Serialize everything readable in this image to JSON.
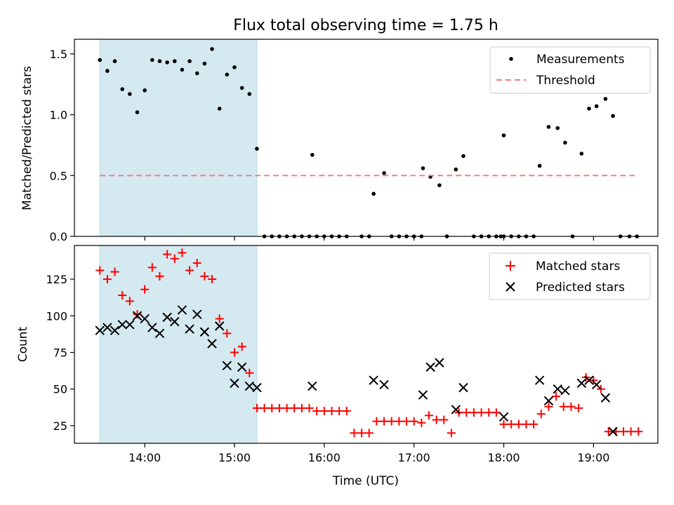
{
  "chart_data": [
    {
      "type": "scatter",
      "title": "Flux total observing time = 1.75 h",
      "xlabel": "",
      "ylabel": "Matched/Predicted stars",
      "xlim": [
        "13:13",
        "19:43"
      ],
      "ylim": [
        0,
        1.62
      ],
      "x_ticks": [
        "14:00",
        "15:00",
        "16:00",
        "17:00",
        "18:00",
        "19:00"
      ],
      "y_ticks": [
        0.0,
        0.5,
        1.0,
        1.5
      ],
      "y_tick_labels": [
        "0.0",
        "0.5",
        "1.0",
        "1.5"
      ],
      "shaded_interval": [
        "13:30",
        "15:15"
      ],
      "legend_position": "upper right",
      "series": [
        {
          "name": "Measurements",
          "color": "#000000",
          "marker": "dot",
          "points": [
            [
              "13:30",
              1.45
            ],
            [
              "13:35",
              1.36
            ],
            [
              "13:40",
              1.44
            ],
            [
              "13:45",
              1.21
            ],
            [
              "13:50",
              1.17
            ],
            [
              "13:55",
              1.02
            ],
            [
              "14:00",
              1.2
            ],
            [
              "14:05",
              1.45
            ],
            [
              "14:10",
              1.44
            ],
            [
              "14:15",
              1.43
            ],
            [
              "14:20",
              1.44
            ],
            [
              "14:25",
              1.37
            ],
            [
              "14:30",
              1.44
            ],
            [
              "14:35",
              1.34
            ],
            [
              "14:40",
              1.42
            ],
            [
              "14:45",
              1.54
            ],
            [
              "14:50",
              1.05
            ],
            [
              "14:55",
              1.33
            ],
            [
              "15:00",
              1.39
            ],
            [
              "15:05",
              1.22
            ],
            [
              "15:10",
              1.17
            ],
            [
              "15:15",
              0.72
            ],
            [
              "15:20",
              0.0
            ],
            [
              "15:25",
              0.0
            ],
            [
              "15:30",
              0.0
            ],
            [
              "15:35",
              0.0
            ],
            [
              "15:40",
              0.0
            ],
            [
              "15:45",
              0.0
            ],
            [
              "15:50",
              0.0
            ],
            [
              "15:55",
              0.0
            ],
            [
              "16:00",
              0.0
            ],
            [
              "16:05",
              0.0
            ],
            [
              "16:10",
              0.0
            ],
            [
              "16:15",
              0.0
            ],
            [
              "16:25",
              0.0
            ],
            [
              "16:30",
              0.0
            ],
            [
              "15:52",
              0.67
            ],
            [
              "16:33",
              0.35
            ],
            [
              "16:40",
              0.52
            ],
            [
              "16:45",
              0.0
            ],
            [
              "16:50",
              0.0
            ],
            [
              "16:55",
              0.0
            ],
            [
              "17:00",
              0.0
            ],
            [
              "17:05",
              0.0
            ],
            [
              "17:06",
              0.56
            ],
            [
              "17:11",
              0.49
            ],
            [
              "17:17",
              0.42
            ],
            [
              "17:22",
              0.0
            ],
            [
              "17:28",
              0.55
            ],
            [
              "17:33",
              0.66
            ],
            [
              "17:40",
              0.0
            ],
            [
              "17:45",
              0.0
            ],
            [
              "17:50",
              0.0
            ],
            [
              "17:55",
              0.0
            ],
            [
              "18:00",
              0.0
            ],
            [
              "17:58",
              0.0
            ],
            [
              "18:00",
              0.83
            ],
            [
              "18:05",
              0.0
            ],
            [
              "18:10",
              0.0
            ],
            [
              "18:15",
              0.0
            ],
            [
              "18:20",
              0.0
            ],
            [
              "18:24",
              0.58
            ],
            [
              "18:30",
              0.9
            ],
            [
              "18:36",
              0.89
            ],
            [
              "18:41",
              0.77
            ],
            [
              "18:46",
              0.0
            ],
            [
              "18:52",
              0.68
            ],
            [
              "18:57",
              1.05
            ],
            [
              "19:02",
              1.07
            ],
            [
              "19:08",
              1.13
            ],
            [
              "19:13",
              0.99
            ],
            [
              "19:18",
              0.0
            ],
            [
              "19:24",
              0.0
            ],
            [
              "19:29",
              0.0
            ]
          ]
        },
        {
          "name": "Threshold",
          "color": "#f08080",
          "style": "dashed",
          "points": [
            [
              "13:30",
              0.5
            ],
            [
              "19:30",
              0.5
            ]
          ]
        }
      ]
    },
    {
      "type": "scatter",
      "title": "",
      "xlabel": "Time (UTC)",
      "ylabel": "Count",
      "xlim": [
        "13:13",
        "19:43"
      ],
      "ylim": [
        13,
        148
      ],
      "x_ticks": [
        "14:00",
        "15:00",
        "16:00",
        "17:00",
        "18:00",
        "19:00"
      ],
      "y_ticks": [
        25,
        50,
        75,
        100,
        125
      ],
      "y_tick_labels": [
        "25",
        "50",
        "75",
        "100",
        "125"
      ],
      "shaded_interval": [
        "13:30",
        "15:15"
      ],
      "legend_position": "upper right",
      "series": [
        {
          "name": "Matched stars",
          "color": "#ff0000",
          "marker": "plus",
          "points": [
            [
              "13:30",
              131
            ],
            [
              "13:35",
              125
            ],
            [
              "13:40",
              130
            ],
            [
              "13:45",
              114
            ],
            [
              "13:50",
              110
            ],
            [
              "13:55",
              101
            ],
            [
              "14:00",
              118
            ],
            [
              "14:05",
              133
            ],
            [
              "14:10",
              127
            ],
            [
              "14:15",
              142
            ],
            [
              "14:20",
              139
            ],
            [
              "14:25",
              143
            ],
            [
              "14:30",
              131
            ],
            [
              "14:35",
              136
            ],
            [
              "14:40",
              127
            ],
            [
              "14:45",
              125
            ],
            [
              "14:50",
              98
            ],
            [
              "14:55",
              88
            ],
            [
              "15:00",
              75
            ],
            [
              "15:05",
              79
            ],
            [
              "15:10",
              61
            ],
            [
              "15:15",
              37
            ],
            [
              "15:20",
              37
            ],
            [
              "15:25",
              37
            ],
            [
              "15:30",
              37
            ],
            [
              "15:35",
              37
            ],
            [
              "15:40",
              37
            ],
            [
              "15:45",
              37
            ],
            [
              "15:50",
              37
            ],
            [
              "15:55",
              35
            ],
            [
              "16:00",
              35
            ],
            [
              "16:05",
              35
            ],
            [
              "16:10",
              35
            ],
            [
              "16:15",
              35
            ],
            [
              "16:20",
              20
            ],
            [
              "16:25",
              20
            ],
            [
              "16:30",
              20
            ],
            [
              "16:35",
              28
            ],
            [
              "16:40",
              28
            ],
            [
              "16:45",
              28
            ],
            [
              "16:50",
              28
            ],
            [
              "16:55",
              28
            ],
            [
              "17:00",
              28
            ],
            [
              "17:05",
              27
            ],
            [
              "17:10",
              32
            ],
            [
              "17:15",
              29
            ],
            [
              "17:20",
              29
            ],
            [
              "17:25",
              20
            ],
            [
              "17:30",
              34
            ],
            [
              "17:35",
              34
            ],
            [
              "17:40",
              34
            ],
            [
              "17:45",
              34
            ],
            [
              "17:50",
              34
            ],
            [
              "17:55",
              34
            ],
            [
              "18:00",
              26
            ],
            [
              "18:05",
              26
            ],
            [
              "18:10",
              26
            ],
            [
              "18:15",
              26
            ],
            [
              "18:20",
              26
            ],
            [
              "18:25",
              33
            ],
            [
              "18:30",
              38
            ],
            [
              "18:35",
              45
            ],
            [
              "18:40",
              38
            ],
            [
              "18:45",
              38
            ],
            [
              "18:50",
              37
            ],
            [
              "18:55",
              58
            ],
            [
              "19:00",
              56
            ],
            [
              "19:05",
              50
            ],
            [
              "19:10",
              21
            ],
            [
              "19:15",
              21
            ],
            [
              "19:20",
              21
            ],
            [
              "19:25",
              21
            ],
            [
              "19:30",
              21
            ]
          ]
        },
        {
          "name": "Predicted stars",
          "color": "#000000",
          "marker": "x",
          "points": [
            [
              "13:30",
              90
            ],
            [
              "13:35",
              92
            ],
            [
              "13:40",
              90
            ],
            [
              "13:45",
              94
            ],
            [
              "13:50",
              94
            ],
            [
              "13:55",
              100
            ],
            [
              "14:00",
              98
            ],
            [
              "14:05",
              92
            ],
            [
              "14:10",
              88
            ],
            [
              "14:15",
              99
            ],
            [
              "14:20",
              96
            ],
            [
              "14:25",
              104
            ],
            [
              "14:30",
              91
            ],
            [
              "14:35",
              101
            ],
            [
              "14:40",
              89
            ],
            [
              "14:45",
              81
            ],
            [
              "14:50",
              93
            ],
            [
              "14:55",
              66
            ],
            [
              "15:00",
              54
            ],
            [
              "15:05",
              65
            ],
            [
              "15:10",
              52
            ],
            [
              "15:15",
              51
            ],
            [
              "15:52",
              52
            ],
            [
              "16:33",
              56
            ],
            [
              "16:40",
              53
            ],
            [
              "17:06",
              46
            ],
            [
              "17:11",
              65
            ],
            [
              "17:17",
              68
            ],
            [
              "17:28",
              36
            ],
            [
              "17:33",
              51
            ],
            [
              "18:00",
              31
            ],
            [
              "18:24",
              56
            ],
            [
              "18:30",
              42
            ],
            [
              "18:36",
              50
            ],
            [
              "18:41",
              49
            ],
            [
              "18:52",
              54
            ],
            [
              "18:57",
              56
            ],
            [
              "19:02",
              53
            ],
            [
              "19:08",
              44
            ],
            [
              "19:13",
              21
            ]
          ]
        }
      ]
    }
  ]
}
